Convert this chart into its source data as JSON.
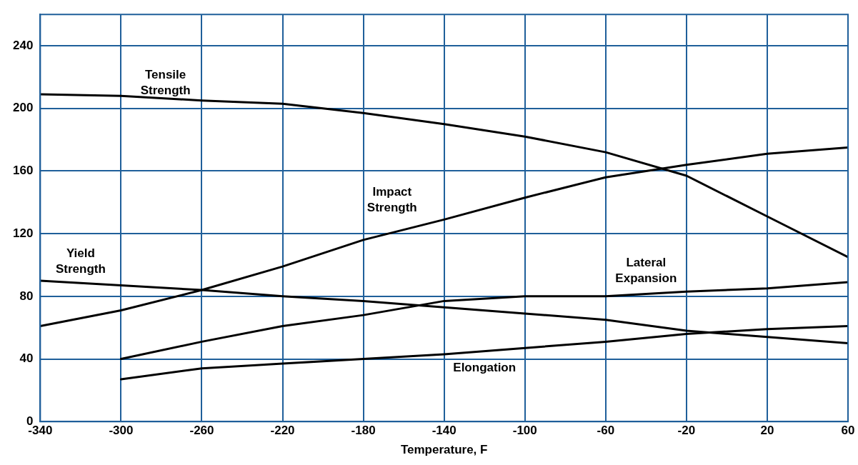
{
  "chart_data": {
    "type": "line",
    "xlabel": "Temperature, F",
    "x": [
      -340,
      -300,
      -260,
      -220,
      -180,
      -140,
      -100,
      -60,
      -20,
      20,
      60
    ],
    "series": [
      {
        "name": "Tensile\nStrength",
        "color": "#000000",
        "values": [
          209,
          208,
          205,
          203,
          197,
          190,
          182,
          172,
          157,
          131,
          105
        ]
      },
      {
        "name": "Impact\nStrength",
        "color": "#000000",
        "values": [
          61,
          71,
          84,
          99,
          116,
          129,
          143,
          156,
          164,
          171,
          175
        ]
      },
      {
        "name": "Yield\nStrength",
        "color": "#000000",
        "values": [
          90,
          87,
          84,
          80,
          77,
          73,
          69,
          65,
          58,
          54,
          50
        ]
      },
      {
        "name": "Lateral\nExpansion",
        "color": "#000000",
        "values": [
          null,
          40,
          51,
          61,
          68,
          77,
          80,
          80,
          83,
          85,
          89
        ]
      },
      {
        "name": "Elongation",
        "color": "#000000",
        "values": [
          null,
          27,
          34,
          37,
          40,
          43,
          47,
          51,
          56,
          59,
          61
        ]
      }
    ],
    "xlim": [
      -340,
      60
    ],
    "xticks": [
      -340,
      -300,
      -260,
      -220,
      -180,
      -140,
      -100,
      -60,
      -20,
      20,
      60
    ],
    "ylim": [
      0,
      260
    ],
    "yticks": [
      0,
      40,
      80,
      120,
      160,
      200,
      240
    ],
    "grid": true,
    "legend": false,
    "marker": "none",
    "line_style": "solid"
  }
}
